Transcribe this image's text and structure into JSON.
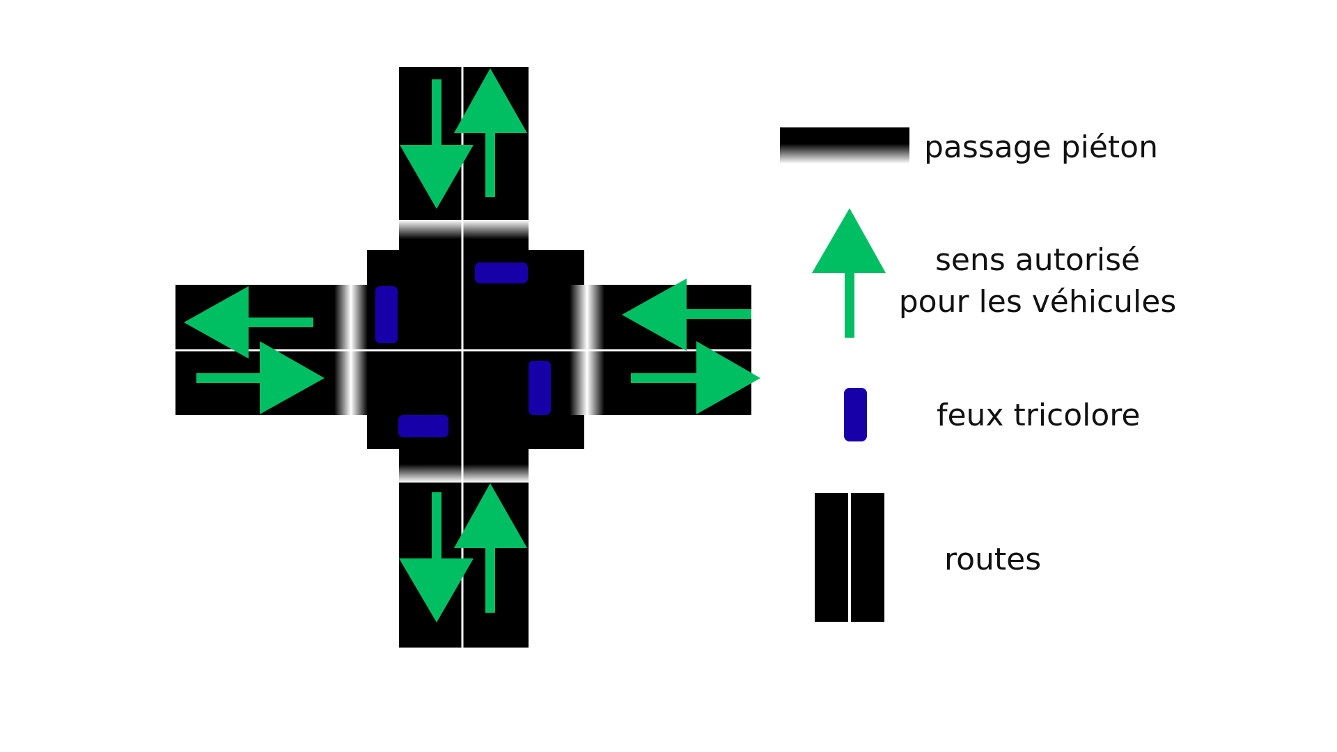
{
  "colors": {
    "road": "#000000",
    "lane_divider": "#ffffff",
    "arrow": "#00bf63",
    "traffic_light": "#1800a8",
    "background": "#ffffff"
  },
  "legend": {
    "crosswalk": {
      "label": "passage piéton",
      "icon": "crosswalk-gradient-icon"
    },
    "direction": {
      "label_line1": "sens autorisé",
      "label_line2": "pour les véhicules",
      "icon": "green-arrow-up-icon"
    },
    "traffic_light": {
      "label": "feux tricolore",
      "icon": "blue-traffic-light-icon"
    },
    "roads": {
      "label": "routes",
      "icon": "two-lane-road-icon"
    }
  },
  "intersection": {
    "roads": [
      "north",
      "south",
      "west",
      "east"
    ],
    "traffic_lights": [
      "north-approach",
      "south-approach",
      "west-approach",
      "east-approach"
    ]
  }
}
